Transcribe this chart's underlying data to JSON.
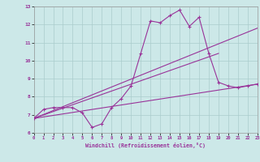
{
  "xlabel": "Windchill (Refroidissement éolien,°C)",
  "background_color": "#cce8e8",
  "line_color": "#993399",
  "grid_color": "#aacccc",
  "xlim": [
    0,
    23
  ],
  "ylim": [
    6,
    13
  ],
  "xticks": [
    0,
    1,
    2,
    3,
    4,
    5,
    6,
    7,
    8,
    9,
    10,
    11,
    12,
    13,
    14,
    15,
    16,
    17,
    18,
    19,
    20,
    21,
    22,
    23
  ],
  "yticks": [
    6,
    7,
    8,
    9,
    10,
    11,
    12,
    13
  ],
  "curve_x": [
    0,
    1,
    2,
    3,
    4,
    5,
    6,
    7,
    8,
    9,
    10,
    11,
    12,
    13,
    14,
    15,
    16,
    17,
    18,
    19,
    20,
    21,
    22,
    23
  ],
  "curve_y": [
    6.8,
    7.3,
    7.4,
    7.4,
    7.4,
    7.1,
    6.3,
    6.5,
    7.4,
    7.9,
    8.6,
    10.4,
    12.2,
    12.1,
    12.5,
    12.8,
    11.9,
    12.4,
    10.4,
    8.8,
    8.6,
    8.5,
    8.6,
    8.7
  ],
  "line1_x": [
    0,
    23
  ],
  "line1_y": [
    6.8,
    8.7
  ],
  "line2_x": [
    0,
    23
  ],
  "line2_y": [
    6.8,
    11.8
  ],
  "line3_x": [
    0,
    19
  ],
  "line3_y": [
    6.8,
    10.4
  ]
}
